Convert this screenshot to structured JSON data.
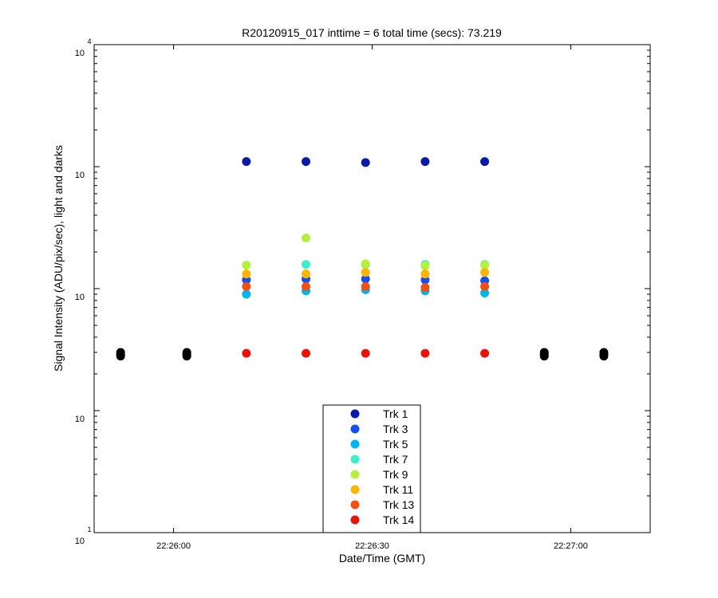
{
  "chart_data": {
    "type": "scatter",
    "title": "R20120915_017 inttime = 6 total time (secs): 73.219",
    "xlabel": "Date/Time (GMT)",
    "ylabel": "Signal Intensity (ADU/pix/sec), light and darks",
    "yscale": "log",
    "ylim": [
      1,
      10000
    ],
    "xlim": [
      "22:25:48",
      "22:27:12"
    ],
    "x_ticks": [
      "22:26:00",
      "22:26:30",
      "22:27:00"
    ],
    "y_ticks": [
      {
        "value": 1,
        "base": "10",
        "exp": "1"
      },
      {
        "value": 10,
        "base": "10",
        "exp": ""
      },
      {
        "value": 100,
        "base": "10",
        "exp": ""
      },
      {
        "value": 1000,
        "base": "10",
        "exp": ""
      },
      {
        "value": 10000,
        "base": "10",
        "exp": "4"
      }
    ],
    "legend_position": "bottom-center",
    "series": [
      {
        "name": "Trk 1",
        "color": "#0a1aa8",
        "points": [
          [
            "22:26:11",
            1100
          ],
          [
            "22:26:20",
            1100
          ],
          [
            "22:26:29",
            1080
          ],
          [
            "22:26:38",
            1100
          ],
          [
            "22:26:47",
            1100
          ]
        ]
      },
      {
        "name": "Trk 3",
        "color": "#1450f0",
        "points": [
          [
            "22:26:11",
            118
          ],
          [
            "22:26:20",
            120
          ],
          [
            "22:26:29",
            120
          ],
          [
            "22:26:38",
            118
          ],
          [
            "22:26:47",
            116
          ]
        ]
      },
      {
        "name": "Trk 5",
        "color": "#00b4ee",
        "points": [
          [
            "22:26:11",
            90
          ],
          [
            "22:26:20",
            96
          ],
          [
            "22:26:29",
            98
          ],
          [
            "22:26:38",
            96
          ],
          [
            "22:26:47",
            92
          ]
        ]
      },
      {
        "name": "Trk 7",
        "color": "#3ef0c8",
        "points": [
          [
            "22:26:20",
            158
          ],
          [
            "22:26:29",
            158
          ],
          [
            "22:26:38",
            158
          ],
          [
            "22:26:47",
            158
          ]
        ]
      },
      {
        "name": "Trk 9",
        "color": "#b4f03c",
        "points": [
          [
            "22:26:11",
            156
          ],
          [
            "22:26:20",
            260
          ],
          [
            "22:26:29",
            160
          ],
          [
            "22:26:38",
            154
          ],
          [
            "22:26:47",
            156
          ]
        ]
      },
      {
        "name": "Trk 11",
        "color": "#ffb400",
        "points": [
          [
            "22:26:11",
            132
          ],
          [
            "22:26:20",
            132
          ],
          [
            "22:26:29",
            136
          ],
          [
            "22:26:38",
            132
          ],
          [
            "22:26:47",
            136
          ]
        ]
      },
      {
        "name": "Trk 13",
        "color": "#f05014",
        "points": [
          [
            "22:26:11",
            104
          ],
          [
            "22:26:20",
            104
          ],
          [
            "22:26:29",
            104
          ],
          [
            "22:26:38",
            102
          ],
          [
            "22:26:47",
            104
          ]
        ]
      },
      {
        "name": "Trk 14",
        "color": "#e8140a",
        "points": [
          [
            "22:26:11",
            29.5
          ],
          [
            "22:26:20",
            29.5
          ],
          [
            "22:26:29",
            29.5
          ],
          [
            "22:26:38",
            29.5
          ],
          [
            "22:26:47",
            29.5
          ]
        ]
      },
      {
        "name": "",
        "color": "#000000",
        "points": [
          [
            "22:25:52",
            28
          ],
          [
            "22:25:52",
            29
          ],
          [
            "22:25:52",
            30
          ],
          [
            "22:26:02",
            28
          ],
          [
            "22:26:02",
            29
          ],
          [
            "22:26:02",
            30
          ],
          [
            "22:26:56",
            28
          ],
          [
            "22:26:56",
            29
          ],
          [
            "22:26:56",
            30
          ],
          [
            "22:27:05",
            28
          ],
          [
            "22:27:05",
            29
          ],
          [
            "22:27:05",
            30
          ]
        ]
      }
    ]
  }
}
